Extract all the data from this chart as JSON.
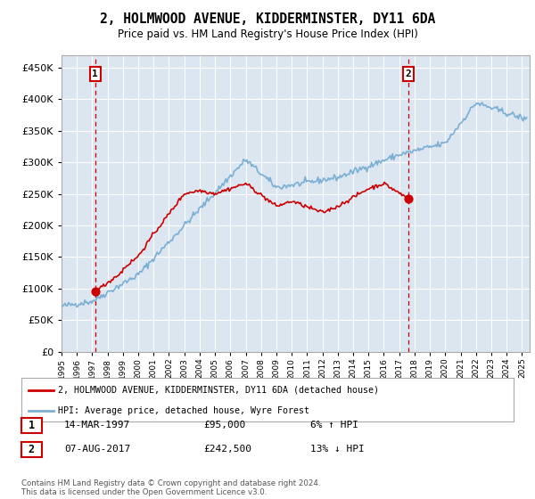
{
  "title": "2, HOLMWOOD AVENUE, KIDDERMINSTER, DY11 6DA",
  "subtitle": "Price paid vs. HM Land Registry's House Price Index (HPI)",
  "legend_line1": "2, HOLMWOOD AVENUE, KIDDERMINSTER, DY11 6DA (detached house)",
  "legend_line2": "HPI: Average price, detached house, Wyre Forest",
  "annotation1_date": "14-MAR-1997",
  "annotation1_price": "£95,000",
  "annotation1_hpi": "6% ↑ HPI",
  "annotation2_date": "07-AUG-2017",
  "annotation2_price": "£242,500",
  "annotation2_hpi": "13% ↓ HPI",
  "footer": "Contains HM Land Registry data © Crown copyright and database right 2024.\nThis data is licensed under the Open Government Licence v3.0.",
  "sale1_x": 1997.2,
  "sale1_y": 95000,
  "sale2_x": 2017.6,
  "sale2_y": 242500,
  "xlim": [
    1995,
    2025.5
  ],
  "ylim": [
    0,
    470000
  ],
  "yticks": [
    0,
    50000,
    100000,
    150000,
    200000,
    250000,
    300000,
    350000,
    400000,
    450000
  ],
  "xticks": [
    1995,
    1996,
    1997,
    1998,
    1999,
    2000,
    2001,
    2002,
    2003,
    2004,
    2005,
    2006,
    2007,
    2008,
    2009,
    2010,
    2011,
    2012,
    2013,
    2014,
    2015,
    2016,
    2017,
    2018,
    2019,
    2020,
    2021,
    2022,
    2023,
    2024,
    2025
  ],
  "plot_bg_color": "#dce6f1",
  "red_line_color": "#cc0000",
  "blue_line_color": "#7bafd4",
  "grid_color": "#ffffff",
  "annotation_box_color": "#cc0000"
}
